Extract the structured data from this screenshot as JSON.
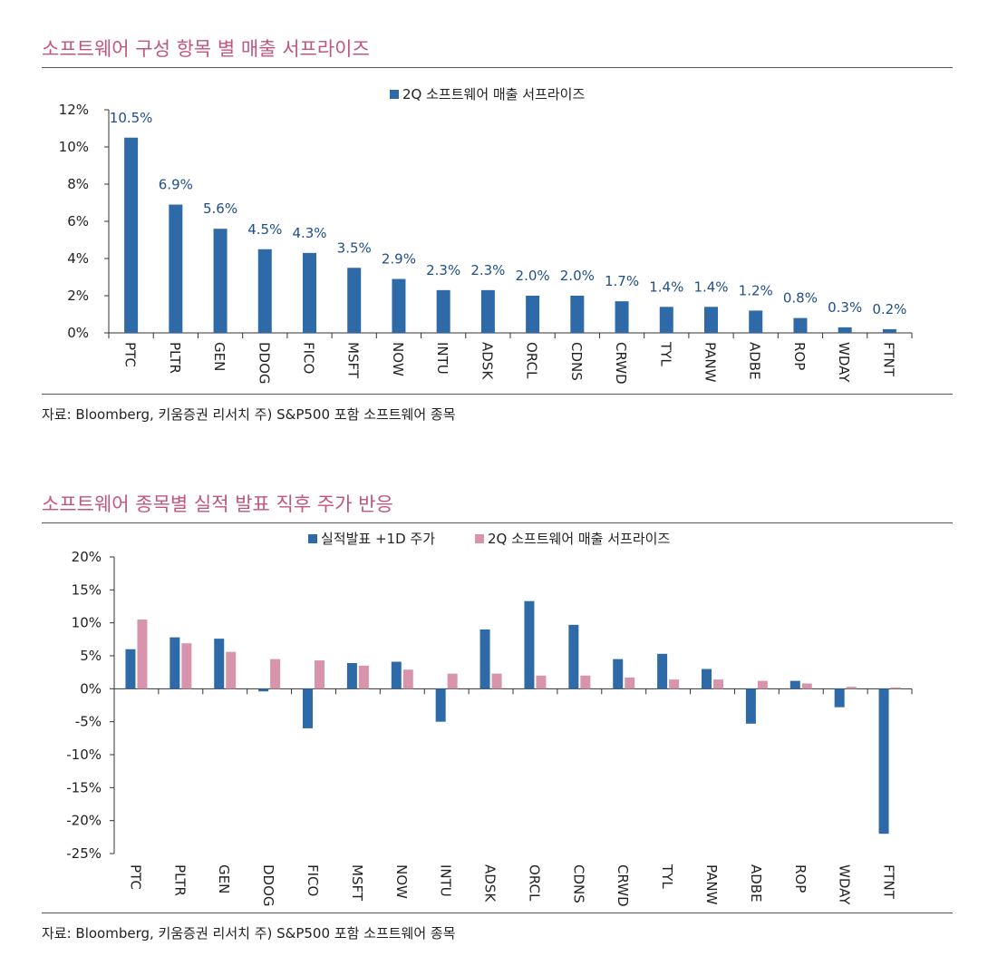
{
  "chart1": {
    "title": "소프트웨어 구성 항목 별 매출 서프라이즈",
    "source": "자료: Bloomberg, 키움증권 리서치 주) S&P500 포함 소프트웨어 종목",
    "chart_data": {
      "type": "bar",
      "categories": [
        "PTC",
        "PLTR",
        "GEN",
        "DDOG",
        "FICO",
        "MSFT",
        "NOW",
        "INTU",
        "ADSK",
        "ORCL",
        "CDNS",
        "CRWD",
        "TYL",
        "PANW",
        "ADBE",
        "ROP",
        "WDAY",
        "FTNT"
      ],
      "series": [
        {
          "name": "2Q 소프트웨어 매출 서프라이즈",
          "values": [
            10.5,
            6.9,
            5.6,
            4.5,
            4.3,
            3.5,
            2.9,
            2.3,
            2.3,
            2.0,
            2.0,
            1.7,
            1.4,
            1.4,
            1.2,
            0.8,
            0.3,
            0.2
          ],
          "color": "#2e6aa8"
        }
      ],
      "data_labels": [
        "10.5%",
        "6.9%",
        "5.6%",
        "4.5%",
        "4.3%",
        "3.5%",
        "2.9%",
        "2.3%",
        "2.3%",
        "2.0%",
        "2.0%",
        "1.7%",
        "1.4%",
        "1.4%",
        "1.2%",
        "0.8%",
        "0.3%",
        "0.2%"
      ],
      "yticks": [
        "0%",
        "2%",
        "4%",
        "6%",
        "8%",
        "10%",
        "12%"
      ],
      "ylim": [
        0,
        12
      ],
      "legend": "top-center",
      "grid": false,
      "xlabel": "",
      "ylabel": ""
    }
  },
  "chart2": {
    "title": "소프트웨어 종목별 실적 발표 직후 주가 반응",
    "source": "자료: Bloomberg, 키움증권 리서치 주) S&P500 포함 소프트웨어 종목",
    "chart_data": {
      "type": "bar",
      "categories": [
        "PTC",
        "PLTR",
        "GEN",
        "DDOG",
        "FICO",
        "MSFT",
        "NOW",
        "INTU",
        "ADSK",
        "ORCL",
        "CDNS",
        "CRWD",
        "TYL",
        "PANW",
        "ADBE",
        "ROP",
        "WDAY",
        "FTNT"
      ],
      "series": [
        {
          "name": "실적발표 +1D 주가",
          "values": [
            6.0,
            7.8,
            7.6,
            -0.4,
            -6.0,
            3.9,
            4.1,
            -5.0,
            9.0,
            13.3,
            9.7,
            4.5,
            5.3,
            3.0,
            -5.3,
            1.2,
            -2.8,
            -22.0
          ],
          "color": "#2e6aa8"
        },
        {
          "name": "2Q 소프트웨어 매출 서프라이즈",
          "values": [
            10.5,
            6.9,
            5.6,
            4.5,
            4.3,
            3.5,
            2.9,
            2.3,
            2.3,
            2.0,
            2.0,
            1.7,
            1.4,
            1.4,
            1.2,
            0.8,
            0.3,
            0.2
          ],
          "color": "#d894ac"
        }
      ],
      "yticks": [
        "20%",
        "15%",
        "10%",
        "5%",
        "0%",
        "-5%",
        "-10%",
        "-15%",
        "-20%",
        "-25%"
      ],
      "ylim": [
        -25,
        20
      ],
      "legend": "top-center",
      "grid": false,
      "xlabel": "",
      "ylabel": ""
    }
  }
}
